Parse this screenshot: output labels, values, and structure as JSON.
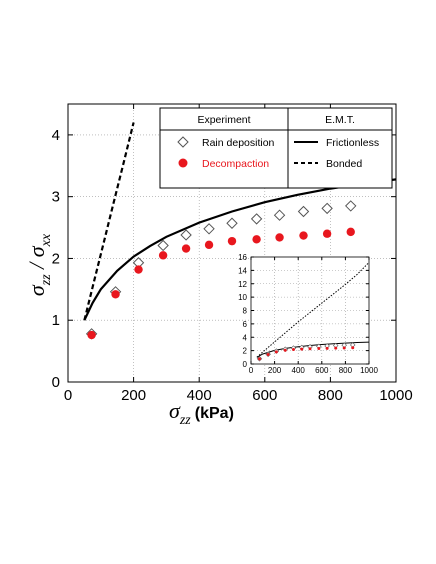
{
  "chart_data": [
    {
      "type": "scatter",
      "title": "",
      "xlabel": {
        "symbol": "σ",
        "subscript": "zz",
        "unit": "(kPa)"
      },
      "ylabel": {
        "symbol1": "σ",
        "subscript1": "zz",
        "sep": " / ",
        "symbol2": "σ",
        "subscript2": "xx"
      },
      "xlim": [
        0,
        1000
      ],
      "ylim": [
        0,
        4.5
      ],
      "xticks": [
        "0",
        "200",
        "400",
        "600",
        "800",
        "1000"
      ],
      "yticks": [
        "0",
        "1",
        "2",
        "3",
        "4"
      ],
      "grid": true,
      "legend": {
        "position": "top-right",
        "header_left": "Experiment",
        "header_right": "E.M.T."
      },
      "series": [
        {
          "name": "Rain deposition",
          "kind": "scatter",
          "marker": "open-diamond",
          "color": "#555555",
          "x": [
            72,
            145,
            215,
            290,
            360,
            430,
            500,
            575,
            645,
            718,
            790,
            862
          ],
          "y": [
            0.78,
            1.46,
            1.93,
            2.21,
            2.38,
            2.48,
            2.57,
            2.64,
            2.7,
            2.76,
            2.81,
            2.85
          ]
        },
        {
          "name": "Decompaction",
          "kind": "scatter",
          "marker": "filled-circle",
          "color": "#e8171e",
          "x": [
            72,
            145,
            215,
            290,
            360,
            430,
            500,
            575,
            645,
            718,
            790,
            862
          ],
          "y": [
            0.76,
            1.42,
            1.82,
            2.05,
            2.16,
            2.22,
            2.28,
            2.31,
            2.34,
            2.37,
            2.4,
            2.43
          ]
        },
        {
          "name": "Frictionless",
          "kind": "line",
          "dash": "solid",
          "color": "#000000",
          "x": [
            50,
            75,
            100,
            150,
            200,
            250,
            300,
            400,
            500,
            600,
            700,
            800,
            900,
            1000
          ],
          "y": [
            1.0,
            1.28,
            1.5,
            1.8,
            2.03,
            2.2,
            2.35,
            2.58,
            2.76,
            2.91,
            3.03,
            3.13,
            3.21,
            3.28
          ]
        },
        {
          "name": "Bonded",
          "kind": "line",
          "dash": "dashed",
          "color": "#000000",
          "x": [
            50,
            80,
            110,
            140,
            170,
            200
          ],
          "y": [
            1.0,
            1.64,
            2.28,
            2.92,
            3.56,
            4.2
          ]
        }
      ]
    },
    {
      "type": "scatter",
      "title": "",
      "xlim": [
        0,
        1000
      ],
      "ylim": [
        0,
        16
      ],
      "xticks": [
        "0",
        "200",
        "400",
        "600",
        "800",
        "1000"
      ],
      "yticks": [
        "0",
        "2",
        "4",
        "6",
        "8",
        "10",
        "12",
        "14",
        "16"
      ],
      "grid": true,
      "series": [
        {
          "name": "Rain deposition",
          "kind": "scatter",
          "marker": "open-diamond",
          "color": "#555555",
          "x": [
            72,
            145,
            215,
            290,
            360,
            430,
            500,
            575,
            645,
            718,
            790,
            862
          ],
          "y": [
            0.78,
            1.46,
            1.93,
            2.21,
            2.38,
            2.48,
            2.57,
            2.64,
            2.7,
            2.76,
            2.81,
            2.85
          ]
        },
        {
          "name": "Decompaction",
          "kind": "scatter",
          "marker": "filled-circle",
          "color": "#e8171e",
          "x": [
            72,
            145,
            215,
            290,
            360,
            430,
            500,
            575,
            645,
            718,
            790,
            862
          ],
          "y": [
            0.76,
            1.42,
            1.82,
            2.05,
            2.16,
            2.22,
            2.28,
            2.31,
            2.34,
            2.37,
            2.4,
            2.43
          ]
        },
        {
          "name": "Frictionless",
          "kind": "line",
          "dash": "solid",
          "color": "#000000",
          "x": [
            50,
            100,
            200,
            300,
            400,
            500,
            600,
            700,
            800,
            900,
            1000
          ],
          "y": [
            1.0,
            1.5,
            2.03,
            2.35,
            2.58,
            2.76,
            2.91,
            3.03,
            3.13,
            3.21,
            3.28
          ]
        },
        {
          "name": "Bonded",
          "kind": "line",
          "dash": "dotted",
          "color": "#000000",
          "x": [
            50,
            100,
            200,
            300,
            400,
            500,
            600,
            700,
            800,
            900,
            1000
          ],
          "y": [
            1.0,
            1.8,
            3.3,
            4.8,
            6.3,
            7.7,
            9.1,
            10.5,
            11.9,
            13.4,
            15.2
          ]
        }
      ]
    }
  ]
}
